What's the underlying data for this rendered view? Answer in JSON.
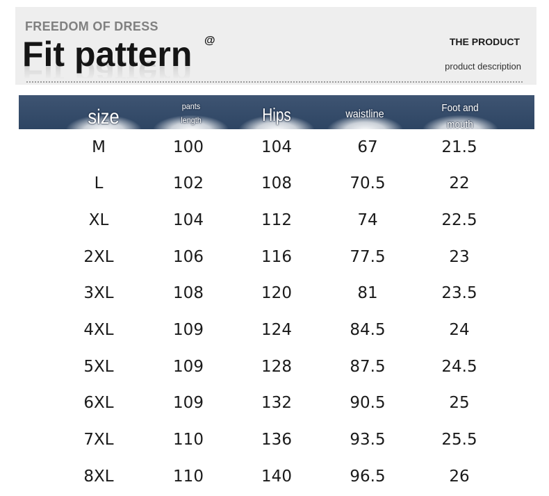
{
  "header": {
    "brand_line": "FREEDOM OF DRESS",
    "title": "Fit pattern",
    "title_mark": "@",
    "product_label": "THE PRODUCT",
    "product_desc": "product description"
  },
  "table": {
    "columns": [
      "size",
      "pants\nlength",
      "Hips",
      "waistline",
      "Foot and\nmouth"
    ],
    "rows": [
      [
        "M",
        "100",
        "104",
        "67",
        "21.5"
      ],
      [
        "L",
        "102",
        "108",
        "70.5",
        "22"
      ],
      [
        "XL",
        "104",
        "112",
        "74",
        "22.5"
      ],
      [
        "2XL",
        "106",
        "116",
        "77.5",
        "23"
      ],
      [
        "3XL",
        "108",
        "120",
        "81",
        "23.5"
      ],
      [
        "4XL",
        "109",
        "124",
        "84.5",
        "24"
      ],
      [
        "5XL",
        "109",
        "128",
        "87.5",
        "24.5"
      ],
      [
        "6XL",
        "109",
        "132",
        "90.5",
        "25"
      ],
      [
        "7XL",
        "110",
        "136",
        "93.5",
        "25.5"
      ],
      [
        "8XL",
        "110",
        "140",
        "96.5",
        "26"
      ]
    ]
  },
  "colors": {
    "header_bar": "#34496a",
    "banner_bg": "#eeeeee",
    "text": "#1a1a1a"
  }
}
